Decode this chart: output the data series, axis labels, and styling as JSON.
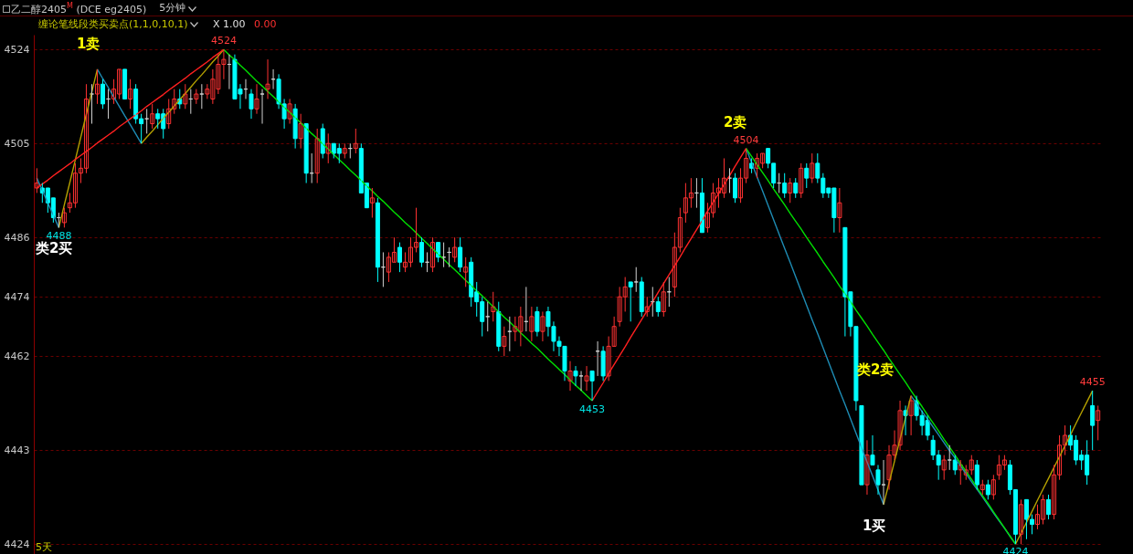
{
  "chart_data": {
    "type": "candlestick",
    "title": "乙二醇2405$^{M}$ (DCE eg2405)",
    "subtitle": "5分钟",
    "categories": [
      null,
      null,
      null,
      null,
      null,
      null,
      null,
      null,
      null,
      null,
      null,
      null,
      null,
      null,
      null,
      null,
      null,
      null,
      null,
      null,
      null,
      null,
      null,
      null,
      null,
      null,
      null,
      null,
      null,
      null,
      null,
      null,
      null,
      null,
      null,
      null,
      null,
      null,
      null,
      null,
      null,
      null,
      null,
      null,
      null,
      null,
      null,
      null,
      null,
      null,
      null,
      null,
      null,
      null,
      null,
      null,
      null,
      null,
      null,
      null,
      null,
      null,
      null,
      null,
      null,
      null,
      null,
      null,
      null,
      null,
      null,
      null,
      null,
      null,
      null,
      null,
      null,
      null,
      null,
      null,
      null,
      null,
      null,
      null,
      null,
      null,
      null,
      null,
      null,
      null,
      null,
      null,
      null,
      null,
      null,
      null,
      null,
      null,
      null,
      null,
      null,
      null,
      null,
      null,
      null,
      null,
      null,
      null,
      null,
      null,
      null,
      null,
      null,
      null,
      null,
      null,
      null,
      null,
      null,
      null,
      null,
      null,
      null,
      null,
      null,
      null,
      null,
      null,
      null,
      null,
      null,
      null,
      null,
      null,
      null,
      null,
      null,
      null,
      null,
      null,
      null,
      null,
      null,
      null,
      null,
      null,
      null,
      null,
      null,
      null,
      null,
      null,
      null,
      null,
      null,
      null,
      null,
      null,
      null,
      null,
      null,
      null,
      null,
      null,
      null,
      null,
      null,
      null,
      null,
      null,
      null,
      null,
      null,
      null,
      null,
      null,
      null,
      null,
      null,
      null,
      null,
      null,
      null,
      null,
      null,
      null,
      null,
      null,
      null,
      null,
      null,
      null,
      null,
      null
    ],
    "ohlc": [
      [
        4496,
        4500,
        4495,
        4497
      ],
      [
        4496,
        4497,
        4493,
        4495
      ],
      [
        4496,
        4496,
        4491,
        4493
      ],
      [
        4494,
        4494,
        4489,
        4490
      ],
      [
        4490,
        4491,
        4488,
        4490
      ],
      [
        4489,
        4492,
        4488,
        4491
      ],
      [
        4492,
        4495,
        4491,
        4493
      ],
      [
        4493,
        4501,
        4492,
        4499
      ],
      [
        4499,
        4502,
        4497,
        4500
      ],
      [
        4500,
        4517,
        4499,
        4514
      ],
      [
        4515,
        4517,
        4509,
        4515
      ],
      [
        4515,
        4520,
        4513,
        4517
      ],
      [
        4517,
        4518,
        4512,
        4513
      ],
      [
        4514,
        4516,
        4510,
        4514
      ],
      [
        4514,
        4518,
        4513,
        4516
      ],
      [
        4515,
        4520,
        4514,
        4520
      ],
      [
        4520,
        4520,
        4514,
        4514
      ],
      [
        4514,
        4518,
        4512,
        4516
      ],
      [
        4516,
        4517,
        4509,
        4510
      ],
      [
        4510,
        4511,
        4505,
        4509
      ],
      [
        4510,
        4512,
        4507,
        4510
      ],
      [
        4509,
        4513,
        4508,
        4511
      ],
      [
        4511,
        4512,
        4508,
        4510
      ],
      [
        4511,
        4512,
        4506,
        4508
      ],
      [
        4509,
        4514,
        4508,
        4512
      ],
      [
        4512,
        4516,
        4511,
        4514
      ],
      [
        4514,
        4516,
        4512,
        4513
      ],
      [
        4513,
        4517,
        4512,
        4515
      ],
      [
        4514,
        4516,
        4511,
        4514
      ],
      [
        4514,
        4516,
        4513,
        4515
      ],
      [
        4515,
        4517,
        4512,
        4515
      ],
      [
        4515,
        4517,
        4514,
        4516
      ],
      [
        4514,
        4520,
        4513,
        4518
      ],
      [
        4516,
        4523,
        4515,
        4521
      ],
      [
        4521,
        4524,
        4518,
        4522
      ],
      [
        4521,
        4523,
        4516,
        4521
      ],
      [
        4522,
        4523,
        4514,
        4514
      ],
      [
        4516,
        4517,
        4512,
        4515
      ],
      [
        4516,
        4518,
        4514,
        4516
      ],
      [
        4515,
        4516,
        4510,
        4512
      ],
      [
        4512,
        4517,
        4511,
        4514
      ],
      [
        4515,
        4516,
        4509,
        4515
      ],
      [
        4516,
        4522,
        4514,
        4517
      ],
      [
        4518,
        4520,
        4516,
        4518
      ],
      [
        4518,
        4519,
        4512,
        4513
      ],
      [
        4513,
        4514,
        4508,
        4510
      ],
      [
        4510,
        4514,
        4509,
        4513
      ],
      [
        4512,
        4513,
        4504,
        4506
      ],
      [
        4506,
        4511,
        4504,
        4509
      ],
      [
        4509,
        4509,
        4497,
        4499
      ],
      [
        4499,
        4503,
        4497,
        4499
      ],
      [
        4499,
        4508,
        4497,
        4506
      ],
      [
        4508,
        4509,
        4502,
        4503
      ],
      [
        4503,
        4507,
        4501,
        4505
      ],
      [
        4505,
        4505,
        4502,
        4503
      ],
      [
        4504,
        4505,
        4501,
        4503
      ],
      [
        4503,
        4505,
        4502,
        4504
      ],
      [
        4504,
        4505,
        4502,
        4504
      ],
      [
        4504,
        4508,
        4503,
        4505
      ],
      [
        4504,
        4505,
        4495,
        4495
      ],
      [
        4497,
        4497,
        4492,
        4492
      ],
      [
        4493,
        4496,
        4490,
        4494
      ],
      [
        4493,
        4494,
        4477,
        4480
      ],
      [
        4480,
        4483,
        4476,
        4480
      ],
      [
        4479,
        4483,
        4477,
        4482
      ],
      [
        4481,
        4486,
        4481,
        4483
      ],
      [
        4484,
        4485,
        4479,
        4481
      ],
      [
        4480,
        4483,
        4479,
        4481
      ],
      [
        4481,
        4486,
        4480,
        4484
      ],
      [
        4484,
        4492,
        4483,
        4485
      ],
      [
        4485,
        4486,
        4480,
        4481
      ],
      [
        4481,
        4483,
        4479,
        4481
      ],
      [
        4480,
        4486,
        4479,
        4485
      ],
      [
        4485,
        4485,
        4481,
        4482
      ],
      [
        4482,
        4485,
        4480,
        4482
      ],
      [
        4483,
        4484,
        4480,
        4483
      ],
      [
        4482,
        4486,
        4481,
        4484
      ],
      [
        4484,
        4486,
        4479,
        4480
      ],
      [
        4479,
        4482,
        4476,
        4480
      ],
      [
        4481,
        4482,
        4472,
        4474
      ],
      [
        4475,
        4477,
        4470,
        4473
      ],
      [
        4473,
        4474,
        4466,
        4469
      ],
      [
        4470,
        4473,
        4467,
        4470
      ],
      [
        4471,
        4475,
        4469,
        4472
      ],
      [
        4471,
        4473,
        4463,
        4464
      ],
      [
        4464,
        4468,
        4462,
        4466
      ],
      [
        4467,
        4470,
        4463,
        4467
      ],
      [
        4467,
        4470,
        4465,
        4468
      ],
      [
        4467,
        4472,
        4464,
        4470
      ],
      [
        4469,
        4476,
        4467,
        4469
      ],
      [
        4467,
        4472,
        4465,
        4470
      ],
      [
        4471,
        4472,
        4466,
        4467
      ],
      [
        4467,
        4471,
        4465,
        4470
      ],
      [
        4471,
        4472,
        4466,
        4468
      ],
      [
        4468,
        4469,
        4463,
        4465
      ],
      [
        4465,
        4466,
        4462,
        4464
      ],
      [
        4464,
        4464,
        4457,
        4459
      ],
      [
        4457,
        4461,
        4455,
        4459
      ],
      [
        4459,
        4460,
        4456,
        4458
      ],
      [
        4458,
        4459,
        4455,
        4458
      ],
      [
        4457,
        4460,
        4455,
        4458
      ],
      [
        4459,
        4459,
        4453,
        4457
      ],
      [
        4463,
        4465,
        4458,
        4463
      ],
      [
        4463,
        4464,
        4457,
        4458
      ],
      [
        4458,
        4466,
        4457,
        4464
      ],
      [
        4464,
        4470,
        4464,
        4468
      ],
      [
        4469,
        4476,
        4468,
        4474
      ],
      [
        4474,
        4478,
        4471,
        4476
      ],
      [
        4477,
        4477,
        4469,
        4476
      ],
      [
        4477,
        4480,
        4475,
        4477
      ],
      [
        4477,
        4478,
        4470,
        4471
      ],
      [
        4471,
        4474,
        4470,
        4472
      ],
      [
        4473,
        4476,
        4470,
        4473
      ],
      [
        4473,
        4474,
        4470,
        4471
      ],
      [
        4471,
        4477,
        4470,
        4475
      ],
      [
        4475,
        4478,
        4472,
        4475
      ],
      [
        4476,
        4487,
        4474,
        4484
      ],
      [
        4484,
        4492,
        4483,
        4490
      ],
      [
        4491,
        4497,
        4489,
        4494
      ],
      [
        4494,
        4498,
        4492,
        4495
      ],
      [
        4495,
        4498,
        4492,
        4495
      ],
      [
        4495,
        4498,
        4487,
        4487
      ],
      [
        4488,
        4493,
        4487,
        4491
      ],
      [
        4491,
        4497,
        4490,
        4495
      ],
      [
        4495,
        4498,
        4492,
        4496
      ],
      [
        4495,
        4502,
        4494,
        4498
      ],
      [
        4498,
        4500,
        4495,
        4498
      ],
      [
        4498,
        4499,
        4493,
        4494
      ],
      [
        4494,
        4500,
        4493,
        4498
      ],
      [
        4498,
        4504,
        4497,
        4502
      ],
      [
        4501,
        4502,
        4499,
        4500
      ],
      [
        4500,
        4503,
        4498,
        4502
      ],
      [
        4501,
        4503,
        4500,
        4503
      ],
      [
        4504,
        4504,
        4500,
        4501
      ],
      [
        4501,
        4501,
        4496,
        4497
      ],
      [
        4497,
        4499,
        4495,
        4497
      ],
      [
        4497,
        4499,
        4494,
        4495
      ],
      [
        4495,
        4498,
        4493,
        4497
      ],
      [
        4497,
        4498,
        4494,
        4495
      ],
      [
        4495,
        4501,
        4494,
        4500
      ],
      [
        4500,
        4501,
        4496,
        4498
      ],
      [
        4498,
        4503,
        4497,
        4501
      ],
      [
        4501,
        4503,
        4497,
        4498
      ],
      [
        4498,
        4499,
        4494,
        4495
      ],
      [
        4496,
        4496,
        4494,
        4495
      ],
      [
        4496,
        4496,
        4487,
        4490
      ],
      [
        4490,
        4496,
        4487,
        4493
      ],
      [
        4488,
        4488,
        4466,
        4474
      ],
      [
        4475,
        4475,
        4466,
        4468
      ],
      [
        4468,
        4468,
        4451,
        4453
      ],
      [
        4452,
        4452,
        4436,
        4436
      ],
      [
        4436,
        4445,
        4434,
        4442
      ],
      [
        4442,
        4446,
        4440,
        4440
      ],
      [
        4439,
        4440,
        4434,
        4436
      ],
      [
        4436,
        4441,
        4432,
        4436
      ],
      [
        4437,
        4444,
        4435,
        4442
      ],
      [
        4442,
        4447,
        4441,
        4444
      ],
      [
        4444,
        4453,
        4443,
        4451
      ],
      [
        4451,
        4452,
        4446,
        4450
      ],
      [
        4450,
        4454,
        4446,
        4453
      ],
      [
        4453,
        4454,
        4449,
        4450
      ],
      [
        4450,
        4451,
        4446,
        4448
      ],
      [
        4449,
        4450,
        4445,
        4446
      ],
      [
        4445,
        4446,
        4441,
        4442
      ],
      [
        4442,
        4443,
        4437,
        4440
      ],
      [
        4439,
        4442,
        4437,
        4441
      ],
      [
        4441,
        4444,
        4439,
        4441
      ],
      [
        4441,
        4442,
        4438,
        4439
      ],
      [
        4439,
        4441,
        4436,
        4440
      ],
      [
        4438,
        4440,
        4437,
        4439
      ],
      [
        4439,
        4442,
        4438,
        4441
      ],
      [
        4440,
        4441,
        4435,
        4436
      ],
      [
        4435,
        4437,
        4434,
        4436
      ],
      [
        4436,
        4437,
        4433,
        4434
      ],
      [
        4434,
        4438,
        4433,
        4437
      ],
      [
        4438,
        4442,
        4437,
        4440
      ],
      [
        4440,
        4442,
        4439,
        4441
      ],
      [
        4440,
        4441,
        4434,
        4435
      ],
      [
        4435,
        4435,
        4424,
        4426
      ],
      [
        4426,
        4433,
        4424,
        4432
      ],
      [
        4433,
        4433,
        4425,
        4429
      ],
      [
        4429,
        4430,
        4426,
        4428
      ],
      [
        4428,
        4432,
        4427,
        4430
      ],
      [
        4429,
        4434,
        4428,
        4433
      ],
      [
        4433,
        4434,
        4429,
        4430
      ],
      [
        4430,
        4440,
        4429,
        4438
      ],
      [
        4438,
        4446,
        4437,
        4444
      ],
      [
        4444,
        4448,
        4442,
        4446
      ],
      [
        4446,
        4448,
        4443,
        4444
      ],
      [
        4445,
        4446,
        4440,
        4441
      ],
      [
        4442,
        4443,
        4439,
        4441
      ],
      [
        4442,
        4445,
        4436,
        4438
      ],
      [
        4452,
        4455,
        4443,
        4448
      ],
      [
        4449,
        4452,
        4445,
        4451
      ]
    ],
    "colors": [
      "#ff3232",
      "#00ffff",
      "#00ffff",
      "#00ffff",
      "#d0d0d0",
      "#ff3232",
      "#ff3232",
      "#ff3232",
      "#ff3232",
      "#ff3232",
      "#d0d0d0",
      "#ff3232",
      "#00ffff",
      "#d0d0d0",
      "#ff3232",
      "#ff3232",
      "#00ffff",
      "#ff3232",
      "#00ffff",
      "#00ffff",
      "#d0d0d0",
      "#ff3232",
      "#00ffff",
      "#00ffff",
      "#ff3232",
      "#ff3232",
      "#00ffff",
      "#ff3232",
      "#d0d0d0",
      "#ff3232",
      "#d0d0d0",
      "#ff3232",
      "#ff3232",
      "#ff3232",
      "#ff3232",
      "#d0d0d0",
      "#00ffff",
      "#00ffff",
      "#d0d0d0",
      "#00ffff",
      "#ff3232",
      "#d0d0d0",
      "#ff3232",
      "#d0d0d0",
      "#00ffff",
      "#00ffff",
      "#ff3232",
      "#00ffff",
      "#ff3232",
      "#00ffff",
      "#d0d0d0",
      "#ff3232",
      "#00ffff",
      "#ff3232",
      "#00ffff",
      "#00ffff",
      "#ff3232",
      "#d0d0d0",
      "#ff3232",
      "#00ffff",
      "#00ffff",
      "#ff3232",
      "#00ffff",
      "#d0d0d0",
      "#ff3232",
      "#ff3232",
      "#00ffff",
      "#ff3232",
      "#ff3232",
      "#ff3232",
      "#00ffff",
      "#d0d0d0",
      "#ff3232",
      "#00ffff",
      "#d0d0d0",
      "#d0d0d0",
      "#ff3232",
      "#00ffff",
      "#ff3232",
      "#00ffff",
      "#00ffff",
      "#00ffff",
      "#d0d0d0",
      "#ff3232",
      "#00ffff",
      "#ff3232",
      "#d0d0d0",
      "#ff3232",
      "#ff3232",
      "#d0d0d0",
      "#ff3232",
      "#00ffff",
      "#ff3232",
      "#00ffff",
      "#00ffff",
      "#00ffff",
      "#00ffff",
      "#ff3232",
      "#00ffff",
      "#d0d0d0",
      "#ff3232",
      "#00ffff",
      "#d0d0d0",
      "#00ffff",
      "#ff3232",
      "#ff3232",
      "#ff3232",
      "#ff3232",
      "#00ffff",
      "#d0d0d0",
      "#00ffff",
      "#ff3232",
      "#d0d0d0",
      "#00ffff",
      "#ff3232",
      "#d0d0d0",
      "#ff3232",
      "#ff3232",
      "#ff3232",
      "#ff3232",
      "#d0d0d0",
      "#00ffff",
      "#ff3232",
      "#ff3232",
      "#ff3232",
      "#ff3232",
      "#d0d0d0",
      "#00ffff",
      "#ff3232",
      "#ff3232",
      "#00ffff",
      "#ff3232",
      "#ff3232",
      "#00ffff",
      "#00ffff",
      "#d0d0d0",
      "#00ffff",
      "#ff3232",
      "#00ffff",
      "#ff3232",
      "#00ffff",
      "#ff3232",
      "#00ffff",
      "#00ffff",
      "#00ffff",
      "#00ffff",
      "#ff3232",
      "#00ffff",
      "#00ffff",
      "#00ffff",
      "#00ffff",
      "#ff3232",
      "#00ffff",
      "#00ffff",
      "#d0d0d0",
      "#ff3232",
      "#ff3232",
      "#ff3232",
      "#00ffff",
      "#ff3232",
      "#00ffff",
      "#00ffff",
      "#00ffff",
      "#00ffff",
      "#00ffff",
      "#ff3232",
      "#d0d0d0",
      "#00ffff",
      "#ff3232",
      "#ff3232",
      "#ff3232",
      "#00ffff",
      "#ff3232",
      "#00ffff",
      "#ff3232",
      "#ff3232",
      "#ff3232",
      "#00ffff",
      "#00ffff",
      "#ff3232",
      "#00ffff",
      "#00ffff",
      "#ff3232",
      "#ff3232",
      "#00ffff",
      "#ff3232",
      "#ff3232",
      "#ff3232",
      "#00ffff",
      "#00ffff",
      "#00ffff",
      "#00ffff",
      "#00ffff",
      "#ff3232"
    ],
    "series": [
      {
        "type": "line",
        "color": "#1e8cb4",
        "values": [
          4498,
          4495.5,
          4493,
          4490.5,
          4488,
          null,
          null,
          null,
          null,
          null,
          null,
          4520,
          4518.1,
          4516.3,
          4514.4,
          4512.5,
          4510.6,
          4508.8,
          4506.9,
          4505,
          null,
          null,
          null,
          null,
          null,
          null,
          null,
          null,
          null,
          null,
          null,
          null,
          null,
          null,
          null,
          null,
          null,
          null,
          null,
          null,
          null,
          null,
          null,
          null,
          null,
          null,
          null,
          null,
          null,
          null,
          null,
          null,
          null,
          null,
          null,
          null,
          null,
          null,
          null,
          null,
          null,
          null,
          null,
          null,
          null,
          null,
          null,
          null,
          null,
          null,
          null,
          null,
          null,
          null,
          null,
          null,
          null,
          null,
          null,
          null,
          null,
          null,
          null,
          null,
          null,
          null,
          null,
          null,
          null,
          null,
          null,
          null,
          null,
          null,
          null,
          null,
          null,
          null,
          null,
          null,
          null,
          null,
          null,
          null,
          null,
          null,
          null,
          null,
          null,
          null,
          null,
          null,
          null,
          null,
          null,
          null,
          null,
          null,
          null,
          null,
          null,
          null,
          null,
          null,
          null,
          null,
          null,
          null,
          null,
          4504,
          4501.1,
          4498.2,
          4495.4,
          4492.5,
          4489.6,
          4486.7,
          4483.8,
          4481,
          4478.1,
          4475.2,
          4472.3,
          4469.4,
          4466.6,
          4463.7,
          4460.8,
          4457.9,
          4455,
          4452.2,
          4449.3,
          4446.4,
          4443.5,
          4440.6,
          4437.8,
          4434.9,
          4432,
          null,
          null,
          null,
          null,
          4454,
          4452.4,
          4450.8,
          4449.3,
          4447.7,
          4446.1,
          4444.5,
          4442.9,
          4441.4,
          4439.8,
          4438.2,
          4436.6,
          4435.1,
          4433.5,
          4431.9,
          4430.3,
          4428.7,
          4427.2,
          4425.6,
          4424,
          null,
          null,
          null,
          null,
          null,
          null,
          null,
          null,
          null,
          null,
          null,
          null,
          null,
          null,
          null
        ]
      },
      {
        "type": "line",
        "color": "#b4a000",
        "values": [
          null,
          null,
          null,
          null,
          4488,
          4492.6,
          4497.1,
          4501.7,
          4506.3,
          4510.9,
          4515.4,
          4520,
          null,
          null,
          null,
          null,
          null,
          null,
          null,
          4505,
          4506.3,
          4507.5,
          4508.8,
          4510.1,
          4511.3,
          4512.6,
          4513.9,
          4515.1,
          4516.4,
          4517.7,
          4518.9,
          4520.2,
          4521.5,
          4522.7,
          4524,
          null,
          null,
          null,
          null,
          null,
          null,
          null,
          null,
          null,
          null,
          null,
          null,
          null,
          null,
          null,
          null,
          null,
          null,
          null,
          null,
          null,
          null,
          null,
          null,
          null,
          null,
          null,
          null,
          null,
          null,
          null,
          null,
          null,
          null,
          null,
          null,
          null,
          null,
          null,
          null,
          null,
          null,
          null,
          null,
          null,
          null,
          null,
          null,
          null,
          null,
          null,
          null,
          null,
          null,
          null,
          null,
          null,
          null,
          null,
          null,
          null,
          null,
          null,
          null,
          null,
          null,
          null,
          null,
          null,
          null,
          null,
          null,
          null,
          null,
          null,
          null,
          null,
          null,
          null,
          null,
          null,
          null,
          null,
          null,
          null,
          null,
          null,
          null,
          null,
          null,
          null,
          null,
          null,
          null,
          null,
          null,
          null,
          null,
          null,
          null,
          null,
          null,
          null,
          null,
          null,
          null,
          null,
          null,
          null,
          null,
          null,
          null,
          null,
          null,
          null,
          null,
          null,
          null,
          null,
          4432,
          4436.4,
          4440.8,
          4445.2,
          4449.6,
          4454,
          null,
          null,
          null,
          null,
          null,
          null,
          null,
          null,
          null,
          null,
          null,
          null,
          null,
          null,
          null,
          null,
          null,
          null,
          4424,
          4426.2,
          4428.4,
          4430.6,
          4432.9,
          4435.1,
          4437.3,
          4439.5,
          4441.7,
          4443.9,
          4446.1,
          4448.4,
          4450.6,
          4452.8,
          4455,
          null
        ]
      },
      {
        "type": "line",
        "color": "#ff2020",
        "values": [
          4496,
          4496.8,
          4497.6,
          4498.5,
          4499.3,
          4500.1,
          4500.9,
          4501.8,
          4502.6,
          4503.4,
          4504.2,
          4505.1,
          4505.9,
          4506.7,
          4507.5,
          4508.4,
          4509.2,
          4510,
          4510.8,
          4511.6,
          4512.5,
          4513.3,
          4514.1,
          4514.9,
          4515.8,
          4516.6,
          4517.4,
          4518.2,
          4519.1,
          4519.9,
          4520.7,
          4521.5,
          4522.4,
          4523.2,
          4524,
          null,
          null,
          null,
          null,
          null,
          null,
          null,
          null,
          null,
          null,
          null,
          null,
          null,
          null,
          null,
          null,
          null,
          null,
          null,
          null,
          null,
          null,
          null,
          null,
          null,
          null,
          null,
          null,
          null,
          null,
          null,
          null,
          null,
          null,
          null,
          null,
          null,
          null,
          null,
          null,
          null,
          null,
          null,
          null,
          null,
          null,
          null,
          null,
          null,
          null,
          null,
          null,
          null,
          null,
          null,
          null,
          null,
          null,
          null,
          null,
          null,
          null,
          null,
          null,
          null,
          null,
          4453,
          4454.8,
          4456.6,
          4458.5,
          4460.3,
          4462.1,
          4463.9,
          4465.8,
          4467.6,
          4469.4,
          4471.2,
          4473,
          4474.9,
          4476.7,
          4478.5,
          4480.3,
          4482.1,
          4484,
          4485.8,
          4487.6,
          4489.4,
          4491.3,
          4493.1,
          4494.9,
          4496.7,
          4498.5,
          4500.4,
          4502.2,
          4504,
          null,
          null,
          null,
          null,
          null,
          null,
          null,
          null,
          null,
          null,
          null,
          null,
          null,
          null,
          null,
          null,
          null,
          null,
          null,
          null,
          null,
          null,
          null,
          null,
          null,
          null,
          null,
          null,
          null,
          null,
          null,
          null,
          null,
          null,
          null,
          null,
          null,
          null,
          null,
          null,
          null,
          null,
          null,
          null,
          null,
          null,
          null,
          null,
          null,
          null,
          null,
          null,
          null,
          null,
          null,
          null,
          null,
          null,
          null,
          null,
          null,
          null,
          null,
          null
        ]
      },
      {
        "type": "line",
        "color": "#00e000",
        "values": [
          null,
          null,
          null,
          null,
          null,
          null,
          null,
          null,
          null,
          null,
          null,
          null,
          null,
          null,
          null,
          null,
          null,
          null,
          null,
          null,
          null,
          null,
          null,
          null,
          null,
          null,
          null,
          null,
          null,
          null,
          null,
          null,
          null,
          null,
          4524,
          4522.9,
          4521.9,
          4520.8,
          4519.8,
          4518.7,
          4517.6,
          4516.6,
          4515.5,
          4514.5,
          4513.4,
          4512.3,
          4511.3,
          4510.2,
          4509.2,
          4508.1,
          4507,
          4506,
          4504.9,
          4503.9,
          4502.8,
          4501.7,
          4500.7,
          4499.6,
          4498.6,
          4497.5,
          4496.4,
          4495.4,
          4494.3,
          4493.3,
          4492.2,
          4491.1,
          4490.1,
          4489,
          4488,
          4486.9,
          4485.8,
          4484.8,
          4483.7,
          4482.6,
          4481.6,
          4480.5,
          4479.5,
          4478.4,
          4477.3,
          4476.3,
          4475.2,
          4474.2,
          4473.1,
          4472,
          4471,
          4469.9,
          4468.9,
          4467.8,
          4466.7,
          4465.7,
          4464.6,
          4463.6,
          4462.5,
          4461.4,
          4460.4,
          4459.3,
          4458.3,
          4457.2,
          4456.1,
          4455.1,
          4454,
          4453,
          null,
          null,
          null,
          null,
          null,
          null,
          null,
          null,
          null,
          null,
          null,
          null,
          null,
          null,
          null,
          null,
          null,
          null,
          null,
          null,
          null,
          null,
          null,
          null,
          null,
          null,
          null,
          4504,
          4502.4,
          4500.7,
          4499.1,
          4497.5,
          4495.8,
          4494.2,
          4492.6,
          4490.9,
          4489.3,
          4487.7,
          4486,
          4484.4,
          4482.8,
          4481.1,
          4479.5,
          4477.9,
          4476.2,
          4474.6,
          4473,
          4471.3,
          4469.7,
          4468.1,
          4466.4,
          4464.8,
          4463.2,
          4461.5,
          4459.9,
          4458.3,
          4456.7,
          4455,
          4453.4,
          4451.8,
          4450.1,
          4448.5,
          4446.9,
          4445.2,
          4443.6,
          4442,
          4440.3,
          4438.7,
          4437.1,
          4435.4,
          4433.8,
          4432.2,
          4430.5,
          4428.9,
          4427.3,
          4425.6,
          4424,
          null,
          null,
          null,
          null,
          null,
          null,
          null,
          null,
          null,
          null,
          null,
          null,
          null,
          null,
          null
        ]
      }
    ],
    "ylim": [
      4422,
      4527
    ],
    "yticks": [
      4424,
      4443,
      4462,
      4474,
      4486,
      4505,
      4524
    ],
    "grid": "y",
    "tick_labels": "y",
    "annotations": [
      {
        "text": "4524",
        "y": 4524
      },
      {
        "text": "4488",
        "y": 4488
      },
      {
        "text": "4453",
        "y": 4453
      },
      {
        "text": "4504",
        "y": 4504
      },
      {
        "text": "4424",
        "y": 4424
      },
      {
        "text": "4455",
        "y": 4455
      },
      "1卖",
      "2卖",
      "类2卖",
      "类2买",
      "1买",
      "缠论笔线段类买卖点(1,1,0,10,1)",
      "X 1.00",
      "0.00",
      "5天"
    ]
  }
}
